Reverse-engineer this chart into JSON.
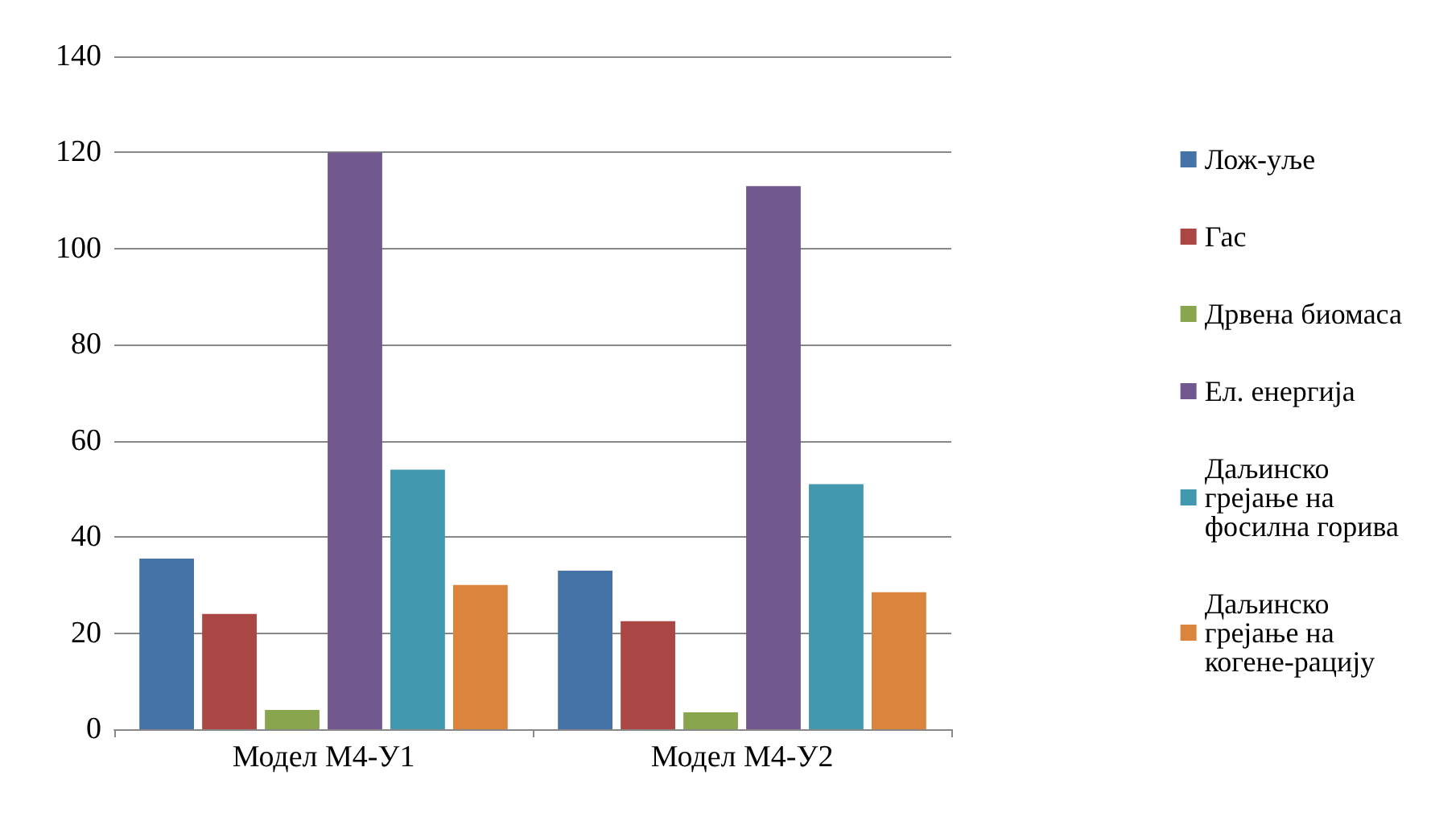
{
  "chart_data": {
    "type": "bar",
    "categories": [
      "Модел М4-У1",
      "Модел М4-У2"
    ],
    "series": [
      {
        "name": "Лож-уље",
        "color": "#4572a7",
        "values": [
          35.5,
          33
        ]
      },
      {
        "name": "Гас",
        "color": "#aa4643",
        "values": [
          24,
          22.5
        ]
      },
      {
        "name": "Дрвена биомаса",
        "color": "#89a54e",
        "values": [
          4,
          3.5
        ]
      },
      {
        "name": "Ел. енергија",
        "color": "#71588f",
        "values": [
          120,
          113
        ]
      },
      {
        "name": "Даљинско грејање на фосилна горива",
        "color": "#4198af",
        "values": [
          54,
          51
        ]
      },
      {
        "name": "Даљинско грејање на когене-рацију",
        "color": "#db843d",
        "values": [
          30,
          28.5
        ]
      }
    ],
    "ylim": [
      0,
      140
    ],
    "yticks": [
      0,
      20,
      40,
      60,
      80,
      100,
      120,
      140
    ],
    "grid": "y",
    "legend": "right"
  }
}
